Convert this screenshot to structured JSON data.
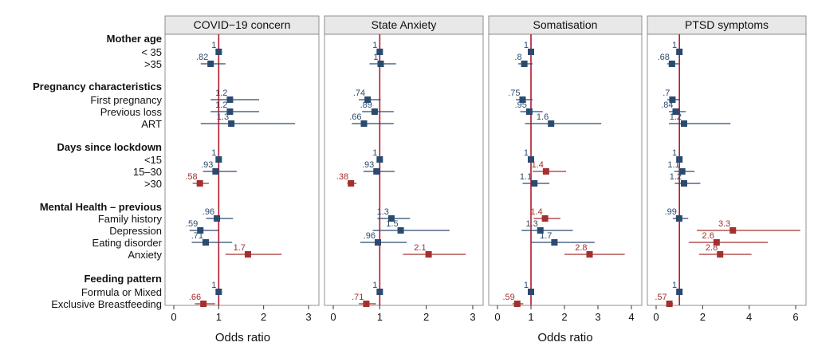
{
  "colors": {
    "blue": "#2b4a6f",
    "red": "#a3302f",
    "refline": "#b2182b",
    "header": "#e8e8e8"
  },
  "chart_data": {
    "type": "forest",
    "xlabel": "Odds ratio",
    "rows": [
      {
        "type": "group",
        "label": "Mother age"
      },
      {
        "type": "item",
        "label": "< 35"
      },
      {
        "type": "item",
        "label": ">35"
      },
      {
        "type": "group",
        "label": "Pregnancy characteristics"
      },
      {
        "type": "item",
        "label": "First pregnancy"
      },
      {
        "type": "item",
        "label": "Previous loss"
      },
      {
        "type": "item",
        "label": "ART"
      },
      {
        "type": "group",
        "label": "Days since lockdown"
      },
      {
        "type": "item",
        "label": "<15"
      },
      {
        "type": "item",
        "label": "15–30"
      },
      {
        "type": "item",
        "label": ">30"
      },
      {
        "type": "group",
        "label": "Mental Health – previous"
      },
      {
        "type": "item",
        "label": "Family history"
      },
      {
        "type": "item",
        "label": "Depression"
      },
      {
        "type": "item",
        "label": "Eating disorder"
      },
      {
        "type": "item",
        "label": "Anxiety"
      },
      {
        "type": "group",
        "label": "Feeding pattern"
      },
      {
        "type": "item",
        "label": "Formula or Mixed"
      },
      {
        "type": "item",
        "label": "Exclusive Breastfeeding"
      }
    ],
    "panels": [
      {
        "title": "COVID−19 concern",
        "xlim": [
          0,
          3
        ],
        "ticks": [
          "0",
          "1",
          "2",
          "3"
        ],
        "points": [
          {
            "or": 1,
            "lo": 1,
            "hi": 1,
            "label": "1",
            "sig": false
          },
          {
            "or": 0.82,
            "lo": 0.6,
            "hi": 1.15,
            "label": ".82",
            "sig": false
          },
          {
            "or": 1.25,
            "lo": 0.82,
            "hi": 1.9,
            "label": "1.2",
            "sig": false
          },
          {
            "or": 1.25,
            "lo": 0.82,
            "hi": 1.9,
            "label": "1.2",
            "sig": false
          },
          {
            "or": 1.28,
            "lo": 0.6,
            "hi": 2.7,
            "label": "1.3",
            "sig": false
          },
          {
            "or": 1,
            "lo": 1,
            "hi": 1,
            "label": "1",
            "sig": false
          },
          {
            "or": 0.93,
            "lo": 0.65,
            "hi": 1.4,
            "label": ".93",
            "sig": false
          },
          {
            "or": 0.58,
            "lo": 0.42,
            "hi": 0.78,
            "label": ".58",
            "sig": true
          },
          {
            "or": 0.96,
            "lo": 0.72,
            "hi": 1.32,
            "label": ".96",
            "sig": false
          },
          {
            "or": 0.59,
            "lo": 0.35,
            "hi": 1.0,
            "label": ".59",
            "sig": false
          },
          {
            "or": 0.71,
            "lo": 0.4,
            "hi": 1.3,
            "label": ".71",
            "sig": false
          },
          {
            "or": 1.65,
            "lo": 1.15,
            "hi": 2.4,
            "label": "1.7",
            "sig": true
          },
          {
            "or": 1,
            "lo": 1,
            "hi": 1,
            "label": "1",
            "sig": false
          },
          {
            "or": 0.66,
            "lo": 0.47,
            "hi": 0.92,
            "label": ".66",
            "sig": true
          }
        ]
      },
      {
        "title": "State Anxiety",
        "xlim": [
          0,
          3
        ],
        "ticks": [
          "0",
          "1",
          "2",
          "3"
        ],
        "points": [
          {
            "or": 1,
            "lo": 1,
            "hi": 1,
            "label": "1",
            "sig": false
          },
          {
            "or": 1.02,
            "lo": 0.78,
            "hi": 1.35,
            "label": "1",
            "sig": false
          },
          {
            "or": 0.74,
            "lo": 0.55,
            "hi": 1.02,
            "label": ".74",
            "sig": false
          },
          {
            "or": 0.89,
            "lo": 0.62,
            "hi": 1.3,
            "label": ".89",
            "sig": false
          },
          {
            "or": 0.66,
            "lo": 0.4,
            "hi": 1.3,
            "label": ".66",
            "sig": false
          },
          {
            "or": 1,
            "lo": 1,
            "hi": 1,
            "label": "1",
            "sig": false
          },
          {
            "or": 0.93,
            "lo": 0.65,
            "hi": 1.32,
            "label": ".93",
            "sig": false
          },
          {
            "or": 0.38,
            "lo": 0.3,
            "hi": 0.5,
            "label": ".38",
            "sig": true
          },
          {
            "or": 1.25,
            "lo": 0.95,
            "hi": 1.65,
            "label": "1.3",
            "sig": false
          },
          {
            "or": 1.45,
            "lo": 0.85,
            "hi": 2.5,
            "label": "1.5",
            "sig": false
          },
          {
            "or": 0.96,
            "lo": 0.58,
            "hi": 1.58,
            "label": ".96",
            "sig": false
          },
          {
            "or": 2.05,
            "lo": 1.5,
            "hi": 2.85,
            "label": "2.1",
            "sig": true
          },
          {
            "or": 1,
            "lo": 1,
            "hi": 1,
            "label": "1",
            "sig": false
          },
          {
            "or": 0.71,
            "lo": 0.55,
            "hi": 0.92,
            "label": ".71",
            "sig": true
          }
        ]
      },
      {
        "title": "Somatisation",
        "xlim": [
          0,
          4
        ],
        "ticks": [
          "0",
          "1",
          "2",
          "3",
          "4"
        ],
        "points": [
          {
            "or": 1,
            "lo": 1,
            "hi": 1,
            "label": "1",
            "sig": false
          },
          {
            "or": 0.8,
            "lo": 0.62,
            "hi": 1.05,
            "label": ".8",
            "sig": false
          },
          {
            "or": 0.75,
            "lo": 0.55,
            "hi": 1.05,
            "label": ".75",
            "sig": false
          },
          {
            "or": 0.95,
            "lo": 0.68,
            "hi": 1.35,
            "label": ".95",
            "sig": false
          },
          {
            "or": 1.6,
            "lo": 0.82,
            "hi": 3.1,
            "label": "1.6",
            "sig": false
          },
          {
            "or": 1,
            "lo": 1,
            "hi": 1,
            "label": "1",
            "sig": false
          },
          {
            "or": 1.45,
            "lo": 1.05,
            "hi": 2.05,
            "label": "1.4",
            "sig": true
          },
          {
            "or": 1.1,
            "lo": 0.75,
            "hi": 1.55,
            "label": "1.1",
            "sig": false
          },
          {
            "or": 1.42,
            "lo": 1.08,
            "hi": 1.88,
            "label": "1.4",
            "sig": true
          },
          {
            "or": 1.28,
            "lo": 0.72,
            "hi": 2.25,
            "label": "1.3",
            "sig": false
          },
          {
            "or": 1.7,
            "lo": 1.0,
            "hi": 2.9,
            "label": "1.7",
            "sig": false
          },
          {
            "or": 2.75,
            "lo": 2.0,
            "hi": 3.8,
            "label": "2.8",
            "sig": true
          },
          {
            "or": 1,
            "lo": 1,
            "hi": 1,
            "label": "1",
            "sig": false
          },
          {
            "or": 0.59,
            "lo": 0.45,
            "hi": 0.77,
            "label": ".59",
            "sig": true
          }
        ]
      },
      {
        "title": "PTSD symptoms",
        "xlim": [
          0,
          6
        ],
        "ticks": [
          "0",
          "2",
          "4",
          "6"
        ],
        "points": [
          {
            "or": 1,
            "lo": 1,
            "hi": 1,
            "label": "1",
            "sig": false
          },
          {
            "or": 0.68,
            "lo": 0.48,
            "hi": 0.97,
            "label": ".68",
            "sig": false
          },
          {
            "or": 0.7,
            "lo": 0.48,
            "hi": 1.02,
            "label": ".7",
            "sig": false
          },
          {
            "or": 0.84,
            "lo": 0.55,
            "hi": 1.28,
            "label": ".84",
            "sig": false
          },
          {
            "or": 1.2,
            "lo": 0.55,
            "hi": 3.2,
            "label": "1.2",
            "sig": false
          },
          {
            "or": 1,
            "lo": 1,
            "hi": 1,
            "label": "1",
            "sig": false
          },
          {
            "or": 1.12,
            "lo": 0.78,
            "hi": 1.65,
            "label": "1.1",
            "sig": false
          },
          {
            "or": 1.2,
            "lo": 0.8,
            "hi": 1.9,
            "label": "1.2",
            "sig": false
          },
          {
            "or": 0.99,
            "lo": 0.72,
            "hi": 1.38,
            "label": ".99",
            "sig": false
          },
          {
            "or": 3.3,
            "lo": 1.75,
            "hi": 6.2,
            "label": "3.3",
            "sig": true
          },
          {
            "or": 2.6,
            "lo": 1.4,
            "hi": 4.8,
            "label": "2.6",
            "sig": true
          },
          {
            "or": 2.75,
            "lo": 1.85,
            "hi": 4.1,
            "label": "2.8",
            "sig": true
          },
          {
            "or": 1,
            "lo": 1,
            "hi": 1,
            "label": "1",
            "sig": false
          },
          {
            "or": 0.57,
            "lo": 0.44,
            "hi": 0.73,
            "label": ".57",
            "sig": true
          }
        ]
      }
    ]
  }
}
